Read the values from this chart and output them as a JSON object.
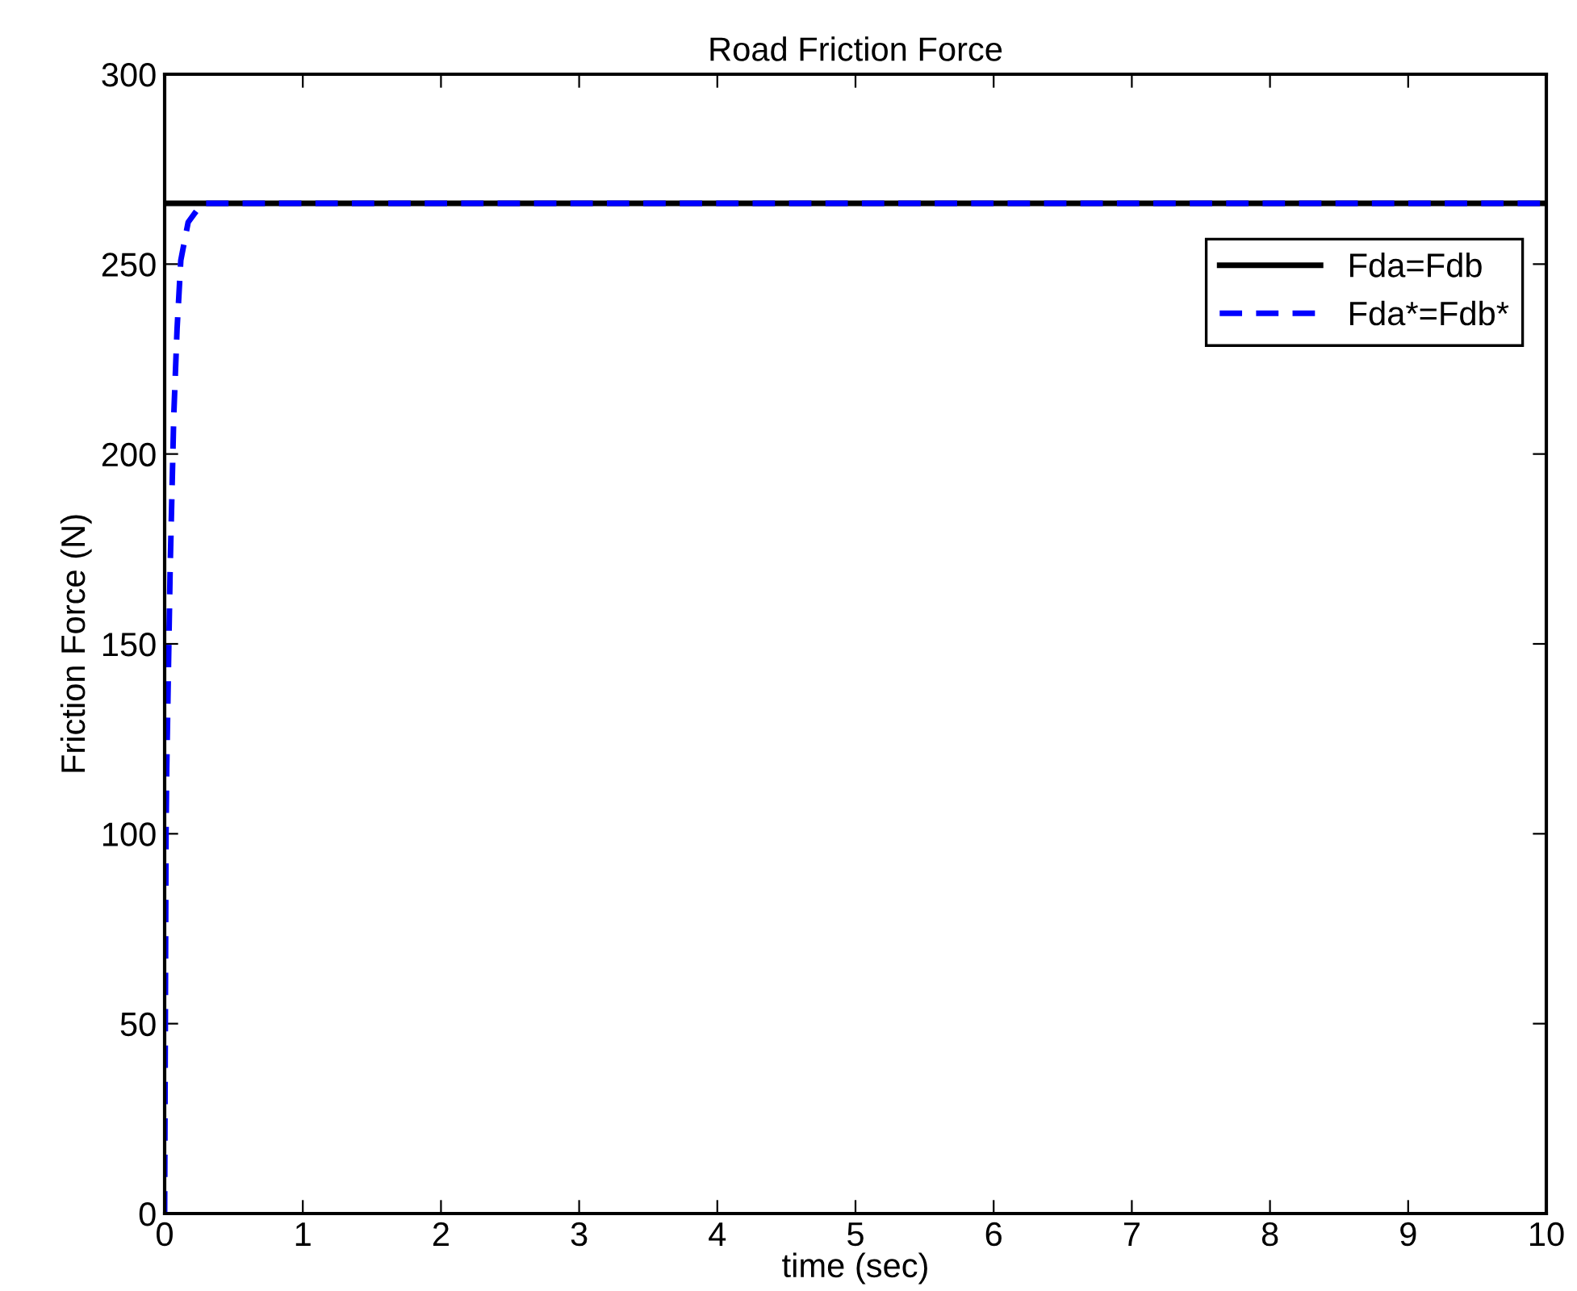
{
  "chart_data": {
    "type": "line",
    "title": "Road Friction Force",
    "xlabel": "time (sec)",
    "ylabel": "Friction Force (N)",
    "xlim": [
      0,
      10
    ],
    "ylim": [
      0,
      300
    ],
    "xticks": [
      0,
      1,
      2,
      3,
      4,
      5,
      6,
      7,
      8,
      9,
      10
    ],
    "yticks": [
      0,
      50,
      100,
      150,
      200,
      250,
      300
    ],
    "grid": false,
    "legend": "top right",
    "series": [
      {
        "name": "Fda=Fdb",
        "color": "#000000",
        "line_style": "solid",
        "x": [
          0,
          10
        ],
        "values": [
          266,
          266
        ]
      },
      {
        "name": "Fda*=Fdb*",
        "color": "#0000ff",
        "line_style": "dashed",
        "x": [
          0,
          0.005,
          0.01,
          0.015,
          0.04,
          0.066,
          0.09,
          0.117,
          0.17,
          0.27,
          10
        ],
        "values": [
          0,
          50,
          100,
          117,
          170,
          210,
          233,
          251,
          261,
          266,
          266
        ]
      }
    ]
  }
}
